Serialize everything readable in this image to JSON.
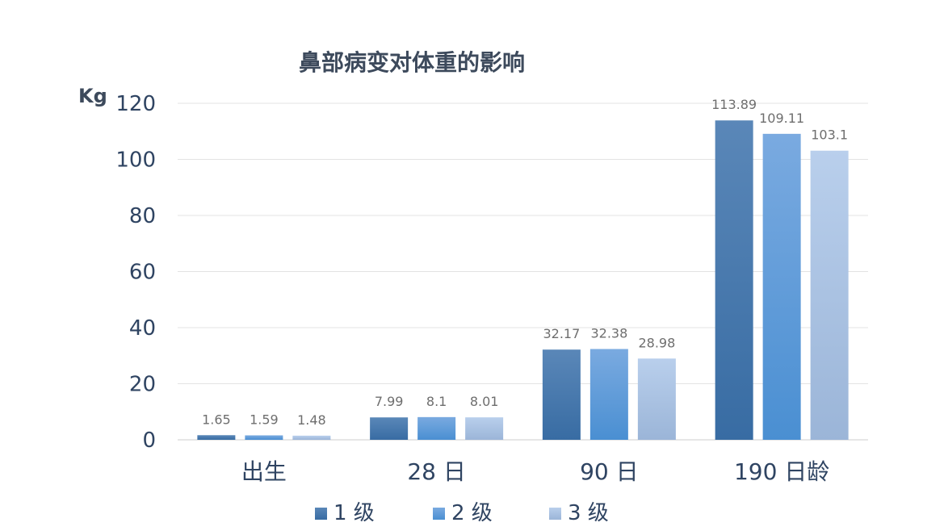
{
  "chart_data": {
    "type": "bar",
    "title": "鼻部病变对体重的影响",
    "ylabel": "Kg",
    "ylim": [
      0,
      120
    ],
    "yticks": [
      0,
      20,
      40,
      60,
      80,
      100,
      120
    ],
    "grid": true,
    "legend_position": "bottom",
    "categories": [
      "出生",
      "28 日",
      "90 日",
      "190 日龄"
    ],
    "series": [
      {
        "name": "1 级",
        "values": [
          1.65,
          7.99,
          32.17,
          113.89
        ],
        "labels": [
          "1.65",
          "7.99",
          "32.17",
          "113.89"
        ],
        "color_top": "#5a87b8",
        "color_bottom": "#386ca3"
      },
      {
        "name": "2 级",
        "values": [
          1.59,
          8.1,
          32.38,
          109.11
        ],
        "labels": [
          "1.59",
          "8.1",
          "32.38",
          "109.11"
        ],
        "color_top": "#7aaae0",
        "color_bottom": "#4a8fd2"
      },
      {
        "name": "3 级",
        "values": [
          1.48,
          8.01,
          28.98,
          103.1
        ],
        "labels": [
          "1.48",
          "8.01",
          "28.98",
          "103.1"
        ],
        "color_top": "#b9cfec",
        "color_bottom": "#9bb5d8"
      }
    ]
  }
}
